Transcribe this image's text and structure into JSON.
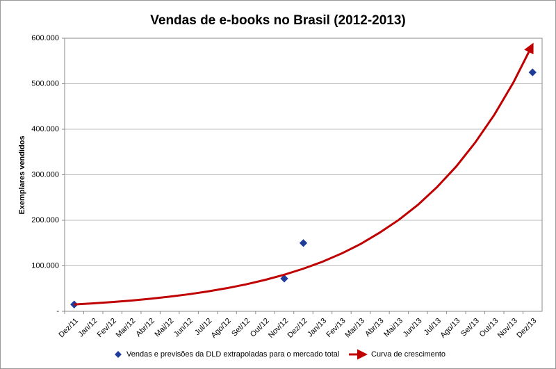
{
  "chart_data": {
    "type": "combo",
    "title": "Vendas de e-books no Brasil (2012-2013)",
    "y_label": "Exemplares vendidos",
    "categories": [
      "Dez/11",
      "Jan/12",
      "Fev/12",
      "Mar/12",
      "Abr/12",
      "Mai/12",
      "Jun/12",
      "Jul/12",
      "Ago/12",
      "Set/12",
      "Out/12",
      "Nov/12",
      "Dez/12",
      "Jan/13",
      "Fev/13",
      "Mar/13",
      "Abr/13",
      "Mai/13",
      "Jun/13",
      "Jul/13",
      "Ago/13",
      "Set/13",
      "Out/13",
      "Nov/13",
      "Dez/13"
    ],
    "series": [
      {
        "name": "Vendas e previsões da DLD extrapoladas para o mercado total",
        "type": "scatter",
        "color": "#1f3c98",
        "values": [
          15000,
          null,
          null,
          null,
          null,
          null,
          null,
          null,
          null,
          null,
          null,
          72000,
          150000,
          null,
          null,
          null,
          null,
          null,
          null,
          null,
          null,
          null,
          null,
          null,
          525000
        ]
      },
      {
        "name": "Curva de crescimento",
        "type": "line",
        "color": "#c00000",
        "values": [
          15000,
          17500,
          20400,
          23700,
          27600,
          32200,
          37500,
          43700,
          50900,
          59300,
          69100,
          80500,
          93700,
          109000,
          127000,
          148000,
          173000,
          201000,
          234000,
          273000,
          318000,
          371000,
          432000,
          503000,
          586000
        ]
      }
    ],
    "ylim": [
      0,
      600000
    ],
    "yticks": [
      {
        "value": 0,
        "label": "-"
      },
      {
        "value": 100000,
        "label": "100.000"
      },
      {
        "value": 200000,
        "label": "200.000"
      },
      {
        "value": 300000,
        "label": "300.000"
      },
      {
        "value": 400000,
        "label": "400.000"
      },
      {
        "value": 500000,
        "label": "500.000"
      },
      {
        "value": 600000,
        "label": "600.000"
      }
    ],
    "grid": true,
    "legend": "bottom"
  }
}
